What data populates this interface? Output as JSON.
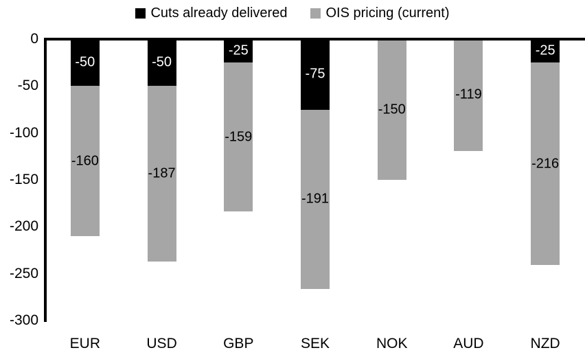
{
  "chart_data": {
    "type": "bar",
    "stacked": true,
    "direction": "negative",
    "title": "",
    "xlabel": "",
    "ylabel": "",
    "categories": [
      "EUR",
      "USD",
      "GBP",
      "SEK",
      "NOK",
      "AUD",
      "NZD"
    ],
    "series": [
      {
        "name": "Cuts already delivered",
        "color": "#000000",
        "label_color": "#ffffff",
        "values": [
          -50,
          -50,
          -25,
          -75,
          0,
          0,
          -25
        ]
      },
      {
        "name": "OIS pricing (current)",
        "color": "#a6a6a6",
        "label_color": "#000000",
        "values": [
          -160,
          -187,
          -159,
          -191,
          -150,
          -119,
          -216
        ]
      }
    ],
    "totals": [
      -210,
      -237,
      -184,
      -266,
      -150,
      -119,
      -241
    ],
    "ylim": [
      -300,
      0
    ],
    "yticks": [
      0,
      -50,
      -100,
      -150,
      -200,
      -250,
      -300
    ],
    "grid": false,
    "legend_position": "top",
    "background": "#ffffff",
    "axis_color": "#000000"
  }
}
